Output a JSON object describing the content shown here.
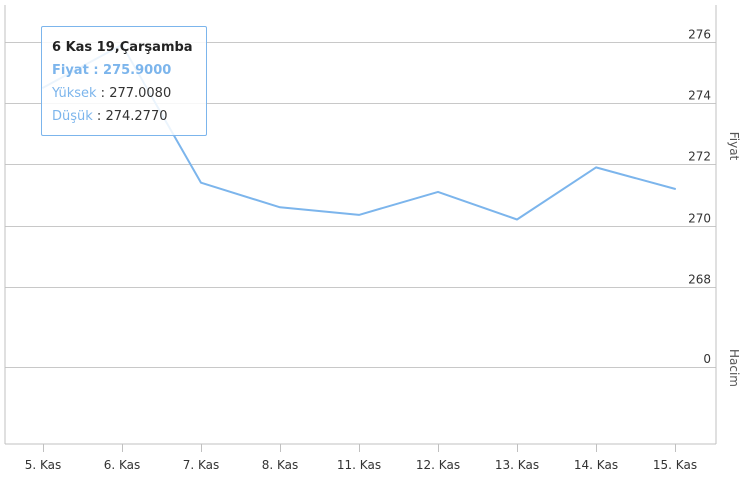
{
  "chart_data": {
    "type": "line",
    "categories": [
      "5. Kas",
      "6. Kas",
      "7. Kas",
      "8. Kas",
      "11. Kas",
      "12. Kas",
      "13. Kas",
      "14. Kas",
      "15. Kas"
    ],
    "series": [
      {
        "values": [
          274.5,
          275.9,
          271.4,
          270.6,
          270.35,
          271.1,
          270.2,
          271.9,
          271.2
        ],
        "color": "#7cb5ec"
      }
    ],
    "price_axis": {
      "title": "Fiyat",
      "ticks": [
        "276",
        "274",
        "272",
        "270",
        "268"
      ],
      "ylim": [
        267.9,
        277.2
      ]
    },
    "volume_axis": {
      "title": "Hacim",
      "ticks": [
        "0"
      ]
    },
    "grid": true,
    "tooltip": {
      "title": "6 Kas 19,Çarşamba",
      "price_label": "Fiyat : 275.9000",
      "high_key": "Yüksek",
      "high_value": "277.0080",
      "low_key": "Düşük",
      "low_value": "274.2770"
    }
  }
}
